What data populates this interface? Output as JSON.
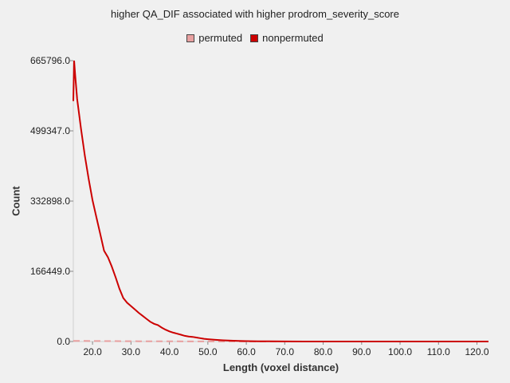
{
  "chart_data": {
    "type": "line",
    "title": "higher QA_DIF associated with higher prodrom_severity_score",
    "xlabel": "Length (voxel distance)",
    "ylabel": "Count",
    "xlim": [
      15.0,
      123.0
    ],
    "ylim": [
      0,
      665796.0
    ],
    "x_ticks": [
      "20.0",
      "30.0",
      "40.0",
      "50.0",
      "60.0",
      "70.0",
      "80.0",
      "90.0",
      "100.0",
      "110.0",
      "120.0"
    ],
    "x_tick_values": [
      20,
      30,
      40,
      50,
      60,
      70,
      80,
      90,
      100,
      110,
      120
    ],
    "y_ticks": [
      "0.0",
      "166449.0",
      "332898.0",
      "499347.0",
      "665796.0"
    ],
    "y_tick_values": [
      0,
      166449,
      332898,
      499347,
      665796
    ],
    "grid": false,
    "legend_position": "top-center",
    "series": [
      {
        "name": "permuted",
        "color": "#e8a0a0",
        "style": "dashed",
        "x": [
          15,
          16,
          18,
          20,
          22,
          24,
          26,
          28,
          30,
          32,
          34,
          36,
          38,
          40,
          42,
          44,
          46,
          48,
          50,
          55,
          60,
          70,
          80,
          90,
          100,
          110,
          120,
          123
        ],
        "y": [
          1500,
          1400,
          1300,
          1200,
          1100,
          1000,
          900,
          800,
          700,
          600,
          500,
          450,
          400,
          350,
          300,
          250,
          200,
          150,
          100,
          60,
          30,
          10,
          5,
          2,
          1,
          0,
          0,
          0
        ]
      },
      {
        "name": "nonpermuted",
        "color": "#cc0000",
        "style": "solid",
        "x": [
          15.0,
          15.2,
          15.5,
          16,
          17,
          18,
          19,
          20,
          21,
          22,
          23,
          24,
          25,
          26,
          27,
          28,
          29,
          30,
          31,
          32,
          33,
          34,
          35,
          36,
          37,
          38,
          39,
          40,
          41,
          42,
          43,
          44,
          45,
          46,
          47,
          48,
          49,
          50,
          52,
          54,
          56,
          58,
          60,
          63,
          66,
          70,
          75,
          80,
          90,
          100,
          110,
          120,
          123
        ],
        "y": [
          570000,
          665796,
          630000,
          575000,
          505000,
          440000,
          385000,
          335000,
          295000,
          255000,
          215000,
          200000,
          178000,
          152000,
          125000,
          103000,
          92000,
          84000,
          76000,
          68000,
          61000,
          54000,
          47000,
          42000,
          39000,
          33000,
          28000,
          24000,
          21000,
          18500,
          16000,
          13500,
          12000,
          11000,
          9500,
          8000,
          6500,
          5500,
          4000,
          2800,
          2000,
          1400,
          1000,
          600,
          350,
          180,
          80,
          40,
          15,
          5,
          2,
          1,
          0
        ]
      }
    ]
  }
}
